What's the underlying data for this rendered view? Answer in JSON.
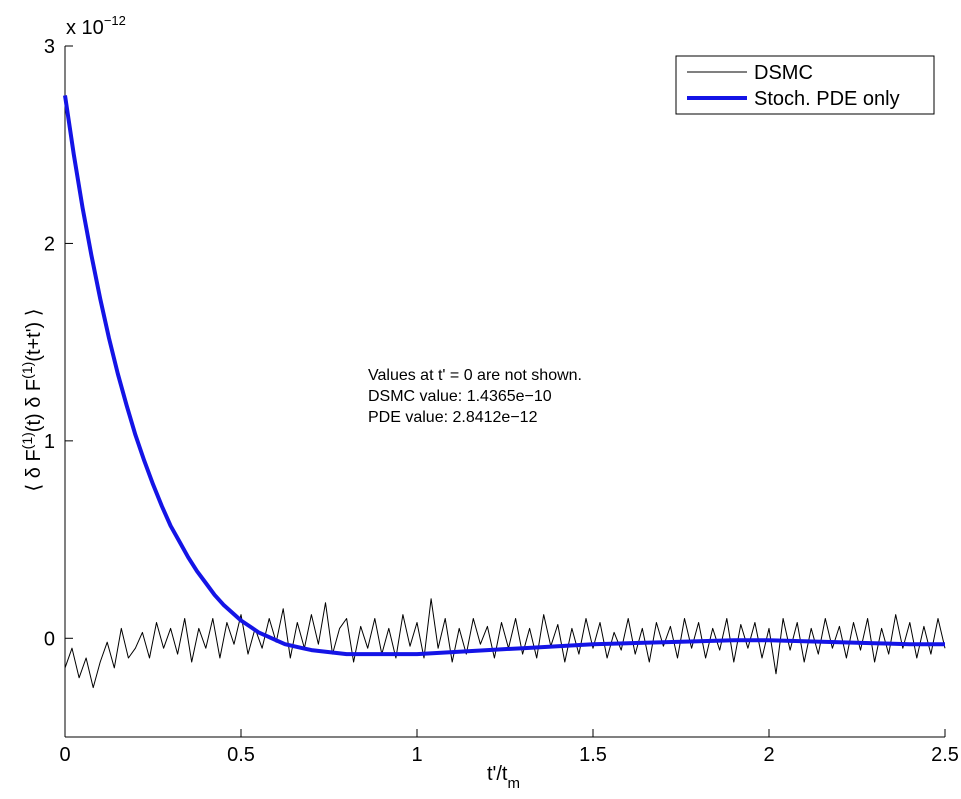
{
  "chart_data": {
    "type": "line",
    "xlabel_main": "t'/t",
    "xlabel_sub": "m",
    "ylabel": "⟨ δ F(1)(t) δ F(1)(t+t') ⟩",
    "ylabel_parts": {
      "open": "⟨ δ F",
      "sup1": "(1)",
      "mid": "(t) δ F",
      "sup2": "(1)",
      "close": "(t+t') ⟩"
    },
    "scale_label": {
      "base": "x 10",
      "exponent": "−12"
    },
    "xlim": [
      0,
      2.5
    ],
    "ylim": [
      -0.5,
      3
    ],
    "y_multiplier": "1e-12",
    "x_ticks": [
      0,
      0.5,
      1,
      1.5,
      2,
      2.5
    ],
    "x_tick_labels": [
      "0",
      "0.5",
      "1",
      "1.5",
      "2",
      "2.5"
    ],
    "y_ticks": [
      0,
      1,
      2,
      3
    ],
    "y_tick_labels": [
      "0",
      "1",
      "2",
      "3"
    ],
    "grid": false,
    "legend_position": "top-right",
    "series": [
      {
        "name": "DSMC",
        "color": "#000000",
        "style": "thin",
        "x": [
          0.0,
          0.02,
          0.04,
          0.06,
          0.08,
          0.1,
          0.12,
          0.14,
          0.16,
          0.18,
          0.2,
          0.22,
          0.24,
          0.26,
          0.28,
          0.3,
          0.32,
          0.34,
          0.36,
          0.38,
          0.4,
          0.42,
          0.44,
          0.46,
          0.48,
          0.5,
          0.52,
          0.54,
          0.56,
          0.58,
          0.6,
          0.62,
          0.64,
          0.66,
          0.68,
          0.7,
          0.72,
          0.74,
          0.76,
          0.78,
          0.8,
          0.82,
          0.84,
          0.86,
          0.88,
          0.9,
          0.92,
          0.94,
          0.96,
          0.98,
          1.0,
          1.02,
          1.04,
          1.06,
          1.08,
          1.1,
          1.12,
          1.14,
          1.16,
          1.18,
          1.2,
          1.22,
          1.24,
          1.26,
          1.28,
          1.3,
          1.32,
          1.34,
          1.36,
          1.38,
          1.4,
          1.42,
          1.44,
          1.46,
          1.48,
          1.5,
          1.52,
          1.54,
          1.56,
          1.58,
          1.6,
          1.62,
          1.64,
          1.66,
          1.68,
          1.7,
          1.72,
          1.74,
          1.76,
          1.78,
          1.8,
          1.82,
          1.84,
          1.86,
          1.88,
          1.9,
          1.92,
          1.94,
          1.96,
          1.98,
          2.0,
          2.02,
          2.04,
          2.06,
          2.08,
          2.1,
          2.12,
          2.14,
          2.16,
          2.18,
          2.2,
          2.22,
          2.24,
          2.26,
          2.28,
          2.3,
          2.32,
          2.34,
          2.36,
          2.38,
          2.4,
          2.42,
          2.44,
          2.46,
          2.48,
          2.5
        ],
        "values": [
          -0.15,
          -0.05,
          -0.2,
          -0.1,
          -0.25,
          -0.12,
          -0.02,
          -0.15,
          0.05,
          -0.1,
          -0.05,
          0.03,
          -0.1,
          0.08,
          -0.05,
          0.05,
          -0.08,
          0.1,
          -0.12,
          0.05,
          -0.05,
          0.1,
          -0.1,
          0.08,
          -0.03,
          0.12,
          -0.08,
          0.05,
          -0.05,
          0.1,
          -0.02,
          0.15,
          -0.1,
          0.08,
          -0.05,
          0.12,
          -0.03,
          0.18,
          -0.08,
          0.05,
          0.1,
          -0.12,
          0.06,
          -0.05,
          0.1,
          -0.08,
          0.05,
          -0.1,
          0.12,
          -0.04,
          0.08,
          -0.1,
          0.2,
          -0.05,
          0.1,
          -0.12,
          0.05,
          -0.08,
          0.1,
          -0.03,
          0.06,
          -0.1,
          0.08,
          -0.05,
          0.1,
          -0.08,
          0.05,
          -0.1,
          0.12,
          -0.04,
          0.07,
          -0.12,
          0.05,
          -0.08,
          0.1,
          -0.05,
          0.08,
          -0.1,
          0.03,
          -0.06,
          0.1,
          -0.08,
          0.05,
          -0.12,
          0.08,
          -0.04,
          0.06,
          -0.1,
          0.1,
          -0.05,
          0.08,
          -0.1,
          0.05,
          -0.06,
          0.1,
          -0.12,
          0.07,
          -0.05,
          0.08,
          -0.1,
          0.05,
          -0.18,
          0.1,
          -0.06,
          0.08,
          -0.12,
          0.05,
          -0.08,
          0.1,
          -0.05,
          0.06,
          -0.1,
          0.08,
          -0.06,
          0.1,
          -0.12,
          0.05,
          -0.08,
          0.12,
          -0.05,
          0.08,
          -0.1,
          0.06,
          -0.08,
          0.1,
          -0.05
        ]
      },
      {
        "name": "Stoch. PDE only",
        "color": "#1414e6",
        "style": "thick",
        "x": [
          0.0,
          0.025,
          0.05,
          0.075,
          0.1,
          0.125,
          0.15,
          0.175,
          0.2,
          0.225,
          0.25,
          0.275,
          0.3,
          0.325,
          0.35,
          0.375,
          0.4,
          0.425,
          0.45,
          0.475,
          0.5,
          0.525,
          0.55,
          0.575,
          0.6,
          0.625,
          0.65,
          0.675,
          0.7,
          0.75,
          0.8,
          0.85,
          0.9,
          0.95,
          1.0,
          1.05,
          1.1,
          1.15,
          1.2,
          1.3,
          1.4,
          1.5,
          1.6,
          1.7,
          1.8,
          1.9,
          2.0,
          2.1,
          2.2,
          2.3,
          2.4,
          2.5
        ],
        "values": [
          2.75,
          2.45,
          2.18,
          1.94,
          1.72,
          1.52,
          1.34,
          1.18,
          1.03,
          0.9,
          0.78,
          0.67,
          0.57,
          0.49,
          0.41,
          0.34,
          0.28,
          0.22,
          0.17,
          0.13,
          0.09,
          0.06,
          0.03,
          0.01,
          -0.01,
          -0.03,
          -0.04,
          -0.05,
          -0.06,
          -0.07,
          -0.08,
          -0.08,
          -0.08,
          -0.08,
          -0.08,
          -0.075,
          -0.07,
          -0.065,
          -0.06,
          -0.05,
          -0.04,
          -0.03,
          -0.025,
          -0.02,
          -0.015,
          -0.01,
          -0.01,
          -0.015,
          -0.02,
          -0.025,
          -0.03,
          -0.03
        ]
      }
    ],
    "annotations": [
      "Values at t' = 0 are not shown.",
      "DSMC value: 1.4365e−10",
      "PDE value: 2.8412e−12"
    ]
  }
}
